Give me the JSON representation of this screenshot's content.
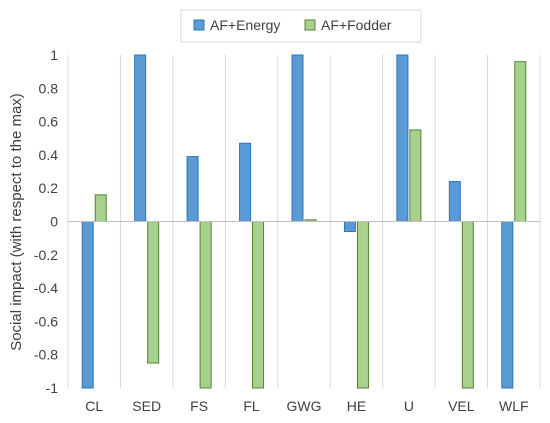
{
  "chart_data": {
    "type": "bar",
    "title": "",
    "xlabel": "",
    "ylabel": "Social impact (with respect to the max)",
    "categories": [
      "CL",
      "SED",
      "FS",
      "FL",
      "GWG",
      "HE",
      "U",
      "VEL",
      "WLF"
    ],
    "series": [
      {
        "name": "AF+Energy",
        "values": [
          -1,
          1,
          0.39,
          0.47,
          1,
          -0.06,
          1,
          0.24,
          -1
        ],
        "color": "#5B9BD5",
        "stroke": "#2E75B6"
      },
      {
        "name": "AF+Fodder",
        "values": [
          0.16,
          -0.85,
          -1,
          -1,
          0.01,
          -1,
          0.55,
          -1,
          0.96
        ],
        "color": "#A9D18E",
        "stroke": "#548235"
      }
    ],
    "ylim": [
      -1,
      1
    ],
    "yticks": [
      "-1",
      "-0.8",
      "-0.6",
      "-0.4",
      "-0.2",
      "0",
      "0.2",
      "0.4",
      "0.6",
      "0.8",
      "1"
    ],
    "grid": "vertical",
    "legend_position": "top-center"
  }
}
